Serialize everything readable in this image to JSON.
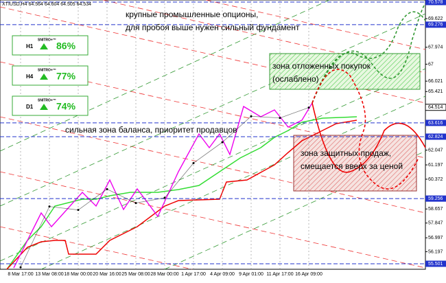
{
  "chart_data": {
    "type": "line",
    "header": "XTIUSD,H4 64.564 64.604 64.505 64.534",
    "annotations": [
      "крупные промышленные опционы,",
      "для пробоя выше нужен сильный фундамент",
      "сильная зона баланса, приоритет продавцов",
      "зона отложенных покупок",
      "(ослаблено)",
      "зона защитных продаж,",
      "смещается вверх за ценой"
    ],
    "widgets": [
      {
        "brand": "SNITRO+™",
        "tf": "H1",
        "value": "86%"
      },
      {
        "brand": "SNITRO+™",
        "tf": "H4",
        "value": "77%"
      },
      {
        "brand": "SNITRO+™",
        "tf": "D1",
        "value": "74%"
      }
    ],
    "categories": [
      "8 Mar 17:00",
      "13 Mar 08:00",
      "18 Mar 00:00",
      "20 Mar 16:00",
      "25 Mar 08:00",
      "28 Mar 00:00",
      "1 Apr 17:00",
      "4 Apr 09:00",
      "9 Apr 01:00",
      "11 Apr 17:00",
      "16 Apr 09:00"
    ],
    "series": [
      {
        "name": "XTIUSD",
        "color": "#000000",
        "values": [
          55.3,
          58.8,
          58.6,
          59.8,
          59.0,
          59.3,
          61.3,
          62.5,
          64.0,
          63.9,
          64.5
        ]
      }
    ],
    "ylim": [
      55.501,
      70.578
    ],
    "yticks": [
      69.622,
      67.974,
      67.0,
      66.021,
      65.421,
      62.047,
      61.197,
      60.372,
      58.657,
      57.847,
      56.997,
      56.197
    ],
    "levels": [
      70.578,
      69.276,
      63.616,
      62.824,
      59.256,
      55.501
    ],
    "last_price": 64.514,
    "grid": true
  }
}
